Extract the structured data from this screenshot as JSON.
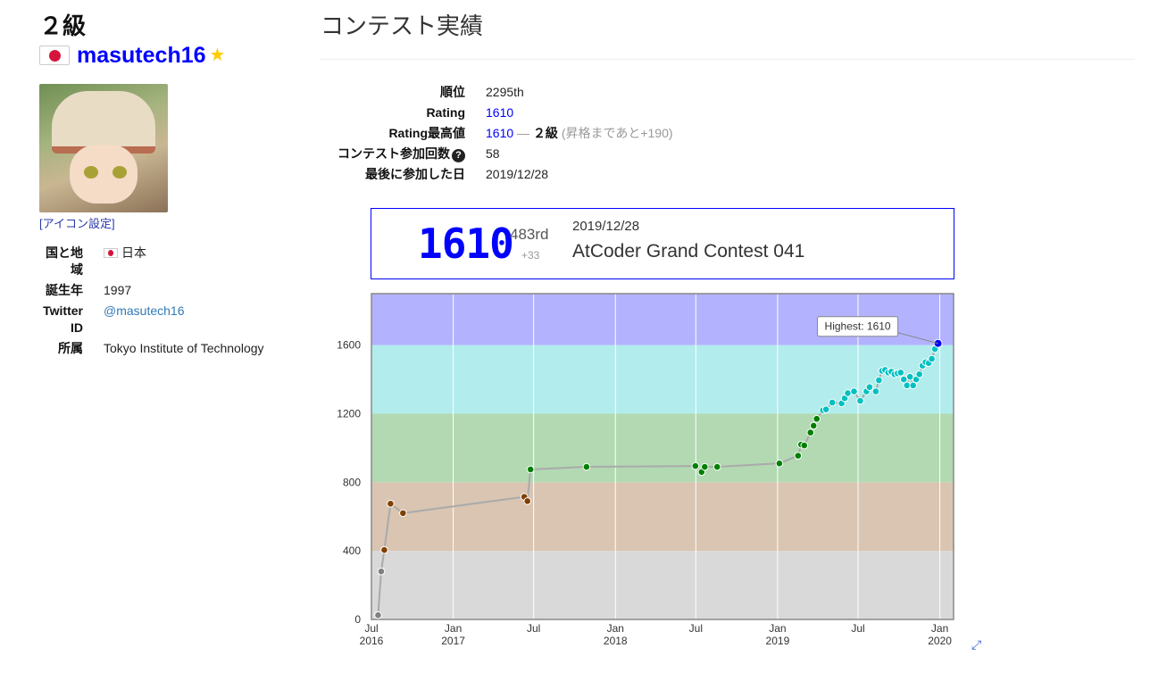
{
  "profile": {
    "kyu": "２級",
    "username": "masutech16",
    "icon_setting_link": "[アイコン設定]",
    "fields": [
      {
        "label": "国と地域",
        "value": "日本"
      },
      {
        "label": "誕生年",
        "value": "1997"
      },
      {
        "label": "Twitter ID",
        "value": "@masutech16"
      },
      {
        "label": "所属",
        "value": "Tokyo Institute of Technology"
      }
    ]
  },
  "main": {
    "title": "コンテスト実績",
    "stats": {
      "rank_label": "順位",
      "rank_value": "2295th",
      "rating_label": "Rating",
      "rating_value": "1610",
      "highest_label": "Rating最高値",
      "highest_value": "1610",
      "highest_sep": "—",
      "highest_kyu": "２級",
      "highest_note": "(昇格まであと+190)",
      "count_label": "コンテスト参加回数",
      "count_value": "58",
      "last_label": "最後に参加した日",
      "last_value": "2019/12/28"
    }
  },
  "last_contest": {
    "rating": "1610",
    "place": "483rd",
    "diff": "+33",
    "date": "2019/12/28",
    "name": "AtCoder Grand Contest 041"
  },
  "colors": {
    "accent": "#0000ff",
    "band_gray": "#d9d9d9",
    "band_brown": "#d9c5b2",
    "band_green": "#b2d9b2",
    "band_cyan": "#b2ecec",
    "band_blue": "#b2b2ff",
    "pt_gray": "#808080",
    "pt_brown": "#804000",
    "pt_green": "#008000",
    "pt_cyan": "#00c0c0",
    "pt_blue": "#0000ff"
  },
  "chart_data": {
    "type": "line",
    "title": "",
    "xlabel": "",
    "ylabel": "",
    "ylim": [
      0,
      1900
    ],
    "xlim": [
      "2016-07-01",
      "2020-02-01"
    ],
    "y_ticks": [
      "0",
      "400",
      "800",
      "1200",
      "1600"
    ],
    "x_ticks": [
      {
        "date": "2016-07-01",
        "label": "Jul",
        "year": "2016"
      },
      {
        "date": "2017-01-01",
        "label": "Jan",
        "year": "2017"
      },
      {
        "date": "2017-07-01",
        "label": "Jul",
        "year": ""
      },
      {
        "date": "2018-01-01",
        "label": "Jan",
        "year": "2018"
      },
      {
        "date": "2018-07-01",
        "label": "Jul",
        "year": ""
      },
      {
        "date": "2019-01-01",
        "label": "Jan",
        "year": "2019"
      },
      {
        "date": "2019-07-01",
        "label": "Jul",
        "year": ""
      },
      {
        "date": "2020-01-01",
        "label": "Jan",
        "year": "2020"
      }
    ],
    "bands": [
      {
        "from": 0,
        "to": 400,
        "color": "#d9d9d9"
      },
      {
        "from": 400,
        "to": 800,
        "color": "#d9c5b2"
      },
      {
        "from": 800,
        "to": 1200,
        "color": "#b2d9b2"
      },
      {
        "from": 1200,
        "to": 1600,
        "color": "#b2ecec"
      },
      {
        "from": 1600,
        "to": 1900,
        "color": "#b2b2ff"
      }
    ],
    "highest_label": "Highest: 1610",
    "points": [
      {
        "x": "2016-07-16",
        "y": 25
      },
      {
        "x": "2016-07-23",
        "y": 280
      },
      {
        "x": "2016-07-30",
        "y": 405
      },
      {
        "x": "2016-08-13",
        "y": 675
      },
      {
        "x": "2016-09-10",
        "y": 620
      },
      {
        "x": "2017-06-10",
        "y": 715
      },
      {
        "x": "2017-06-17",
        "y": 690
      },
      {
        "x": "2017-06-24",
        "y": 875
      },
      {
        "x": "2017-10-28",
        "y": 890
      },
      {
        "x": "2018-06-30",
        "y": 895
      },
      {
        "x": "2018-07-14",
        "y": 860
      },
      {
        "x": "2018-07-21",
        "y": 890
      },
      {
        "x": "2018-08-18",
        "y": 890
      },
      {
        "x": "2019-01-05",
        "y": 910
      },
      {
        "x": "2019-02-16",
        "y": 955
      },
      {
        "x": "2019-02-23",
        "y": 1020
      },
      {
        "x": "2019-03-02",
        "y": 1015
      },
      {
        "x": "2019-03-16",
        "y": 1090
      },
      {
        "x": "2019-03-23",
        "y": 1130
      },
      {
        "x": "2019-03-30",
        "y": 1170
      },
      {
        "x": "2019-04-13",
        "y": 1220
      },
      {
        "x": "2019-04-20",
        "y": 1225
      },
      {
        "x": "2019-05-04",
        "y": 1265
      },
      {
        "x": "2019-05-25",
        "y": 1260
      },
      {
        "x": "2019-06-01",
        "y": 1290
      },
      {
        "x": "2019-06-08",
        "y": 1320
      },
      {
        "x": "2019-06-22",
        "y": 1330
      },
      {
        "x": "2019-07-06",
        "y": 1275
      },
      {
        "x": "2019-07-20",
        "y": 1330
      },
      {
        "x": "2019-07-27",
        "y": 1355
      },
      {
        "x": "2019-08-10",
        "y": 1330
      },
      {
        "x": "2019-08-17",
        "y": 1395
      },
      {
        "x": "2019-08-24",
        "y": 1450
      },
      {
        "x": "2019-08-31",
        "y": 1455
      },
      {
        "x": "2019-09-07",
        "y": 1440
      },
      {
        "x": "2019-09-14",
        "y": 1445
      },
      {
        "x": "2019-09-21",
        "y": 1430
      },
      {
        "x": "2019-09-28",
        "y": 1435
      },
      {
        "x": "2019-10-05",
        "y": 1440
      },
      {
        "x": "2019-10-12",
        "y": 1400
      },
      {
        "x": "2019-10-19",
        "y": 1365
      },
      {
        "x": "2019-10-26",
        "y": 1415
      },
      {
        "x": "2019-11-02",
        "y": 1365
      },
      {
        "x": "2019-11-09",
        "y": 1400
      },
      {
        "x": "2019-11-16",
        "y": 1430
      },
      {
        "x": "2019-11-23",
        "y": 1480
      },
      {
        "x": "2019-11-30",
        "y": 1500
      },
      {
        "x": "2019-12-07",
        "y": 1495
      },
      {
        "x": "2019-12-14",
        "y": 1520
      },
      {
        "x": "2019-12-21",
        "y": 1577
      },
      {
        "x": "2019-12-28",
        "y": 1610
      }
    ]
  }
}
